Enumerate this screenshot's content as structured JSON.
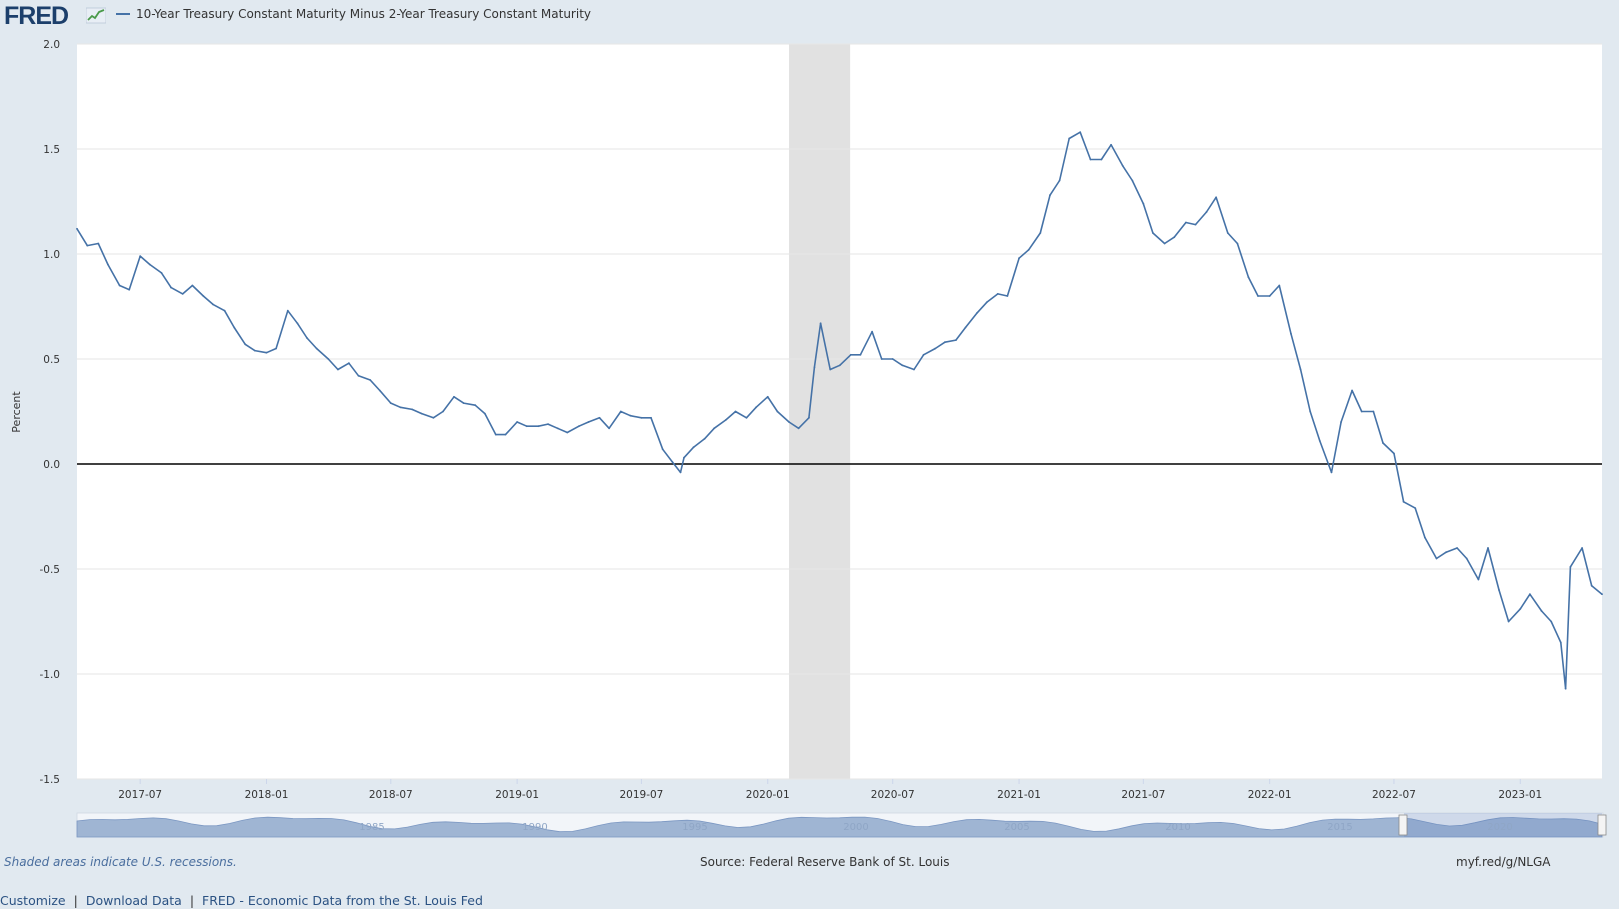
{
  "header": {
    "logo_text": "FRED",
    "series_title": "10-Year Treasury Constant Maturity Minus 2-Year Treasury Constant Maturity"
  },
  "notes": {
    "recessions": "Shaded areas indicate U.S. recessions.",
    "source": "Source: Federal Reserve Bank of St. Louis",
    "shortlink": "myf.red/g/NLGA"
  },
  "footer": {
    "links": [
      "Customize",
      "Download Data",
      "FRED - Economic Data from the St. Louis Fed"
    ]
  },
  "colors": {
    "background": "#e1e9f0",
    "plot_background": "#ffffff",
    "series_line": "#4572a7",
    "recession_shade": "#e1e1e1",
    "zero_line": "#000000",
    "navigator_fill": "#9fb5d3"
  },
  "icons": {
    "logo_graph": "line-chart-icon"
  },
  "navigator": {
    "year_labels": [
      "1985",
      "1990",
      "1995",
      "2000",
      "2005",
      "2010",
      "2015",
      "2020"
    ]
  },
  "chart_data": {
    "type": "line",
    "title": "10-Year Treasury Constant Maturity Minus 2-Year Treasury Constant Maturity",
    "ylabel": "Percent",
    "xlabel": "",
    "ylim": [
      -1.5,
      2.0
    ],
    "xlim": [
      "2017-03-31",
      "2023-04-30"
    ],
    "y_ticks": [
      "2.0",
      "1.5",
      "1.0",
      "0.5",
      "0.0",
      "-0.5",
      "-1.0",
      "-1.5"
    ],
    "x_ticks": [
      "2017-07",
      "2018-01",
      "2018-07",
      "2019-01",
      "2019-07",
      "2020-01",
      "2020-07",
      "2021-01",
      "2021-07",
      "2022-01",
      "2022-07",
      "2023-01"
    ],
    "grid": true,
    "legend": "top-left",
    "recessions": [
      {
        "start": "2020-02-01",
        "end": "2020-04-30"
      }
    ],
    "series": [
      {
        "name": "10-Year Treasury Constant Maturity Minus 2-Year Treasury Constant Maturity",
        "x": [
          "2017-03-31",
          "2017-04-15",
          "2017-05-01",
          "2017-05-15",
          "2017-06-01",
          "2017-06-15",
          "2017-07-01",
          "2017-07-15",
          "2017-08-01",
          "2017-08-15",
          "2017-09-01",
          "2017-09-15",
          "2017-10-01",
          "2017-10-15",
          "2017-11-01",
          "2017-11-15",
          "2017-12-01",
          "2017-12-15",
          "2018-01-01",
          "2018-01-15",
          "2018-02-01",
          "2018-02-15",
          "2018-03-01",
          "2018-03-15",
          "2018-04-01",
          "2018-04-15",
          "2018-05-01",
          "2018-05-15",
          "2018-06-01",
          "2018-06-15",
          "2018-07-01",
          "2018-07-15",
          "2018-08-01",
          "2018-08-15",
          "2018-09-01",
          "2018-09-15",
          "2018-10-01",
          "2018-10-15",
          "2018-11-01",
          "2018-11-15",
          "2018-12-01",
          "2018-12-15",
          "2019-01-01",
          "2019-01-15",
          "2019-02-01",
          "2019-02-15",
          "2019-03-01",
          "2019-03-15",
          "2019-04-01",
          "2019-04-15",
          "2019-05-01",
          "2019-05-15",
          "2019-06-01",
          "2019-06-15",
          "2019-07-01",
          "2019-07-15",
          "2019-08-01",
          "2019-08-15",
          "2019-08-27",
          "2019-09-01",
          "2019-09-15",
          "2019-10-01",
          "2019-10-15",
          "2019-11-01",
          "2019-11-15",
          "2019-12-01",
          "2019-12-15",
          "2020-01-01",
          "2020-01-15",
          "2020-02-01",
          "2020-02-15",
          "2020-03-01",
          "2020-03-09",
          "2020-03-18",
          "2020-04-01",
          "2020-04-15",
          "2020-05-01",
          "2020-05-15",
          "2020-06-01",
          "2020-06-15",
          "2020-07-01",
          "2020-07-15",
          "2020-08-01",
          "2020-08-15",
          "2020-09-01",
          "2020-09-15",
          "2020-10-01",
          "2020-10-15",
          "2020-11-01",
          "2020-11-15",
          "2020-12-01",
          "2020-12-15",
          "2021-01-01",
          "2021-01-15",
          "2021-02-01",
          "2021-02-15",
          "2021-03-01",
          "2021-03-15",
          "2021-03-31",
          "2021-04-15",
          "2021-05-01",
          "2021-05-15",
          "2021-06-01",
          "2021-06-15",
          "2021-07-01",
          "2021-07-15",
          "2021-08-01",
          "2021-08-15",
          "2021-09-01",
          "2021-09-15",
          "2021-10-01",
          "2021-10-15",
          "2021-11-01",
          "2021-11-15",
          "2021-12-01",
          "2021-12-15",
          "2022-01-01",
          "2022-01-15",
          "2022-02-01",
          "2022-02-15",
          "2022-03-01",
          "2022-03-15",
          "2022-04-01",
          "2022-04-15",
          "2022-05-01",
          "2022-05-15",
          "2022-06-01",
          "2022-06-15",
          "2022-07-01",
          "2022-07-15",
          "2022-08-01",
          "2022-08-15",
          "2022-09-01",
          "2022-09-15",
          "2022-10-01",
          "2022-10-15",
          "2022-11-01",
          "2022-11-15",
          "2022-12-01",
          "2022-12-15",
          "2023-01-01",
          "2023-01-15",
          "2023-02-01",
          "2023-02-15",
          "2023-03-01",
          "2023-03-08",
          "2023-03-15",
          "2023-04-01",
          "2023-04-15",
          "2023-04-30"
        ],
        "values": [
          1.12,
          1.04,
          1.05,
          0.95,
          0.85,
          0.83,
          0.99,
          0.95,
          0.91,
          0.84,
          0.81,
          0.85,
          0.8,
          0.76,
          0.73,
          0.65,
          0.57,
          0.54,
          0.53,
          0.55,
          0.73,
          0.67,
          0.6,
          0.55,
          0.5,
          0.45,
          0.48,
          0.42,
          0.4,
          0.35,
          0.29,
          0.27,
          0.26,
          0.24,
          0.22,
          0.25,
          0.32,
          0.29,
          0.28,
          0.24,
          0.14,
          0.14,
          0.2,
          0.18,
          0.18,
          0.19,
          0.17,
          0.15,
          0.18,
          0.2,
          0.22,
          0.17,
          0.25,
          0.23,
          0.22,
          0.22,
          0.07,
          0.01,
          -0.04,
          0.03,
          0.08,
          0.12,
          0.17,
          0.21,
          0.25,
          0.22,
          0.27,
          0.32,
          0.25,
          0.2,
          0.17,
          0.22,
          0.46,
          0.67,
          0.45,
          0.47,
          0.52,
          0.52,
          0.63,
          0.5,
          0.5,
          0.47,
          0.45,
          0.52,
          0.55,
          0.58,
          0.59,
          0.65,
          0.72,
          0.77,
          0.81,
          0.8,
          0.98,
          1.02,
          1.1,
          1.28,
          1.35,
          1.55,
          1.58,
          1.45,
          1.45,
          1.52,
          1.42,
          1.35,
          1.24,
          1.1,
          1.05,
          1.08,
          1.15,
          1.14,
          1.2,
          1.27,
          1.1,
          1.05,
          0.89,
          0.8,
          0.8,
          0.85,
          0.62,
          0.45,
          0.25,
          0.11,
          -0.04,
          0.2,
          0.35,
          0.25,
          0.25,
          0.1,
          0.05,
          -0.18,
          -0.21,
          -0.35,
          -0.45,
          -0.42,
          -0.4,
          -0.45,
          -0.55,
          -0.4,
          -0.6,
          -0.75,
          -0.69,
          -0.62,
          -0.7,
          -0.75,
          -0.85,
          -1.07,
          -0.49,
          -0.4,
          -0.58,
          -0.62
        ]
      }
    ]
  }
}
